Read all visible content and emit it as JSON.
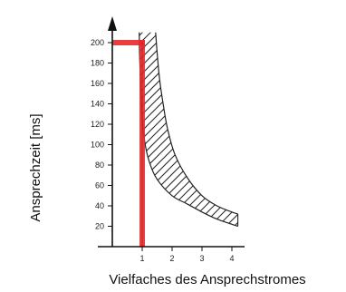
{
  "chart_data": {
    "type": "line",
    "title": "",
    "xlabel": "Vielfaches des Ansprechstromes",
    "ylabel": "Ansprechzeit [ms]",
    "xlim": [
      0,
      4.2
    ],
    "ylim": [
      0,
      210
    ],
    "x_ticks": [
      1,
      2,
      3,
      4
    ],
    "y_ticks": [
      20,
      40,
      60,
      80,
      100,
      120,
      140,
      160,
      180,
      200
    ],
    "grid": false,
    "series": [
      {
        "style": "hatched band lower boundary",
        "x": [
          0.9,
          0.92,
          0.96,
          1.0,
          1.1,
          1.25,
          1.5,
          2.0,
          2.5,
          3.0,
          3.5,
          4.0,
          4.2
        ],
        "y": [
          210,
          180,
          150,
          125,
          100,
          82,
          66,
          50,
          42,
          34,
          27,
          22,
          20
        ]
      },
      {
        "style": "hatched band upper boundary",
        "x": [
          1.45,
          1.5,
          1.58,
          1.7,
          1.85,
          2.1,
          2.5,
          3.0,
          3.5,
          4.0,
          4.2
        ],
        "y": [
          210,
          190,
          165,
          140,
          115,
          90,
          68,
          50,
          40,
          34,
          32
        ]
      },
      {
        "style": "red highlight",
        "color": "#e8282b",
        "x": [
          0,
          1,
          1
        ],
        "y": [
          200,
          200,
          0
        ]
      }
    ]
  }
}
